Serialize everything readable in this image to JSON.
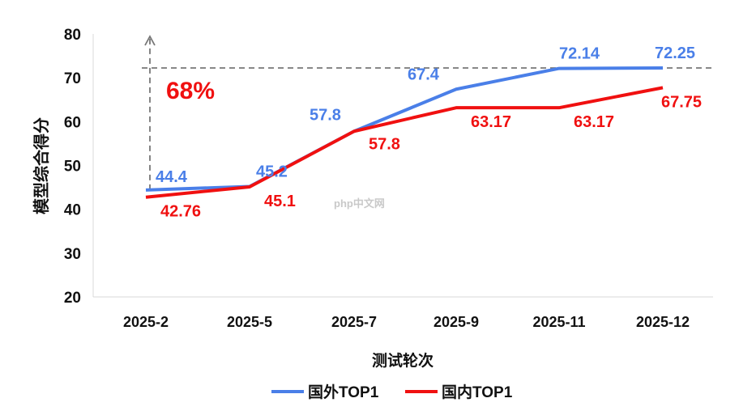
{
  "chart_data": {
    "type": "line",
    "categories": [
      "2025-2",
      "2025-5",
      "2025-7",
      "2025-9",
      "2025-11",
      "2025-12"
    ],
    "series": [
      {
        "name": "国外TOP1",
        "color": "#4a7fe8",
        "values": [
          44.4,
          45.2,
          57.8,
          67.4,
          72.14,
          72.25
        ]
      },
      {
        "name": "国内TOP1",
        "color": "#f01010",
        "values": [
          42.76,
          45.1,
          57.8,
          63.17,
          63.17,
          67.75
        ]
      }
    ],
    "xlabel": "测试轮次",
    "ylabel": "模型综合得分",
    "ylim": [
      20,
      80
    ],
    "yticks": [
      20,
      30,
      40,
      50,
      60,
      70,
      80
    ],
    "grid": false,
    "legend": "bottom",
    "annotation": {
      "text": "68%",
      "color": "#f01010",
      "reference_value": 72.25
    },
    "watermark": "php中文网"
  }
}
